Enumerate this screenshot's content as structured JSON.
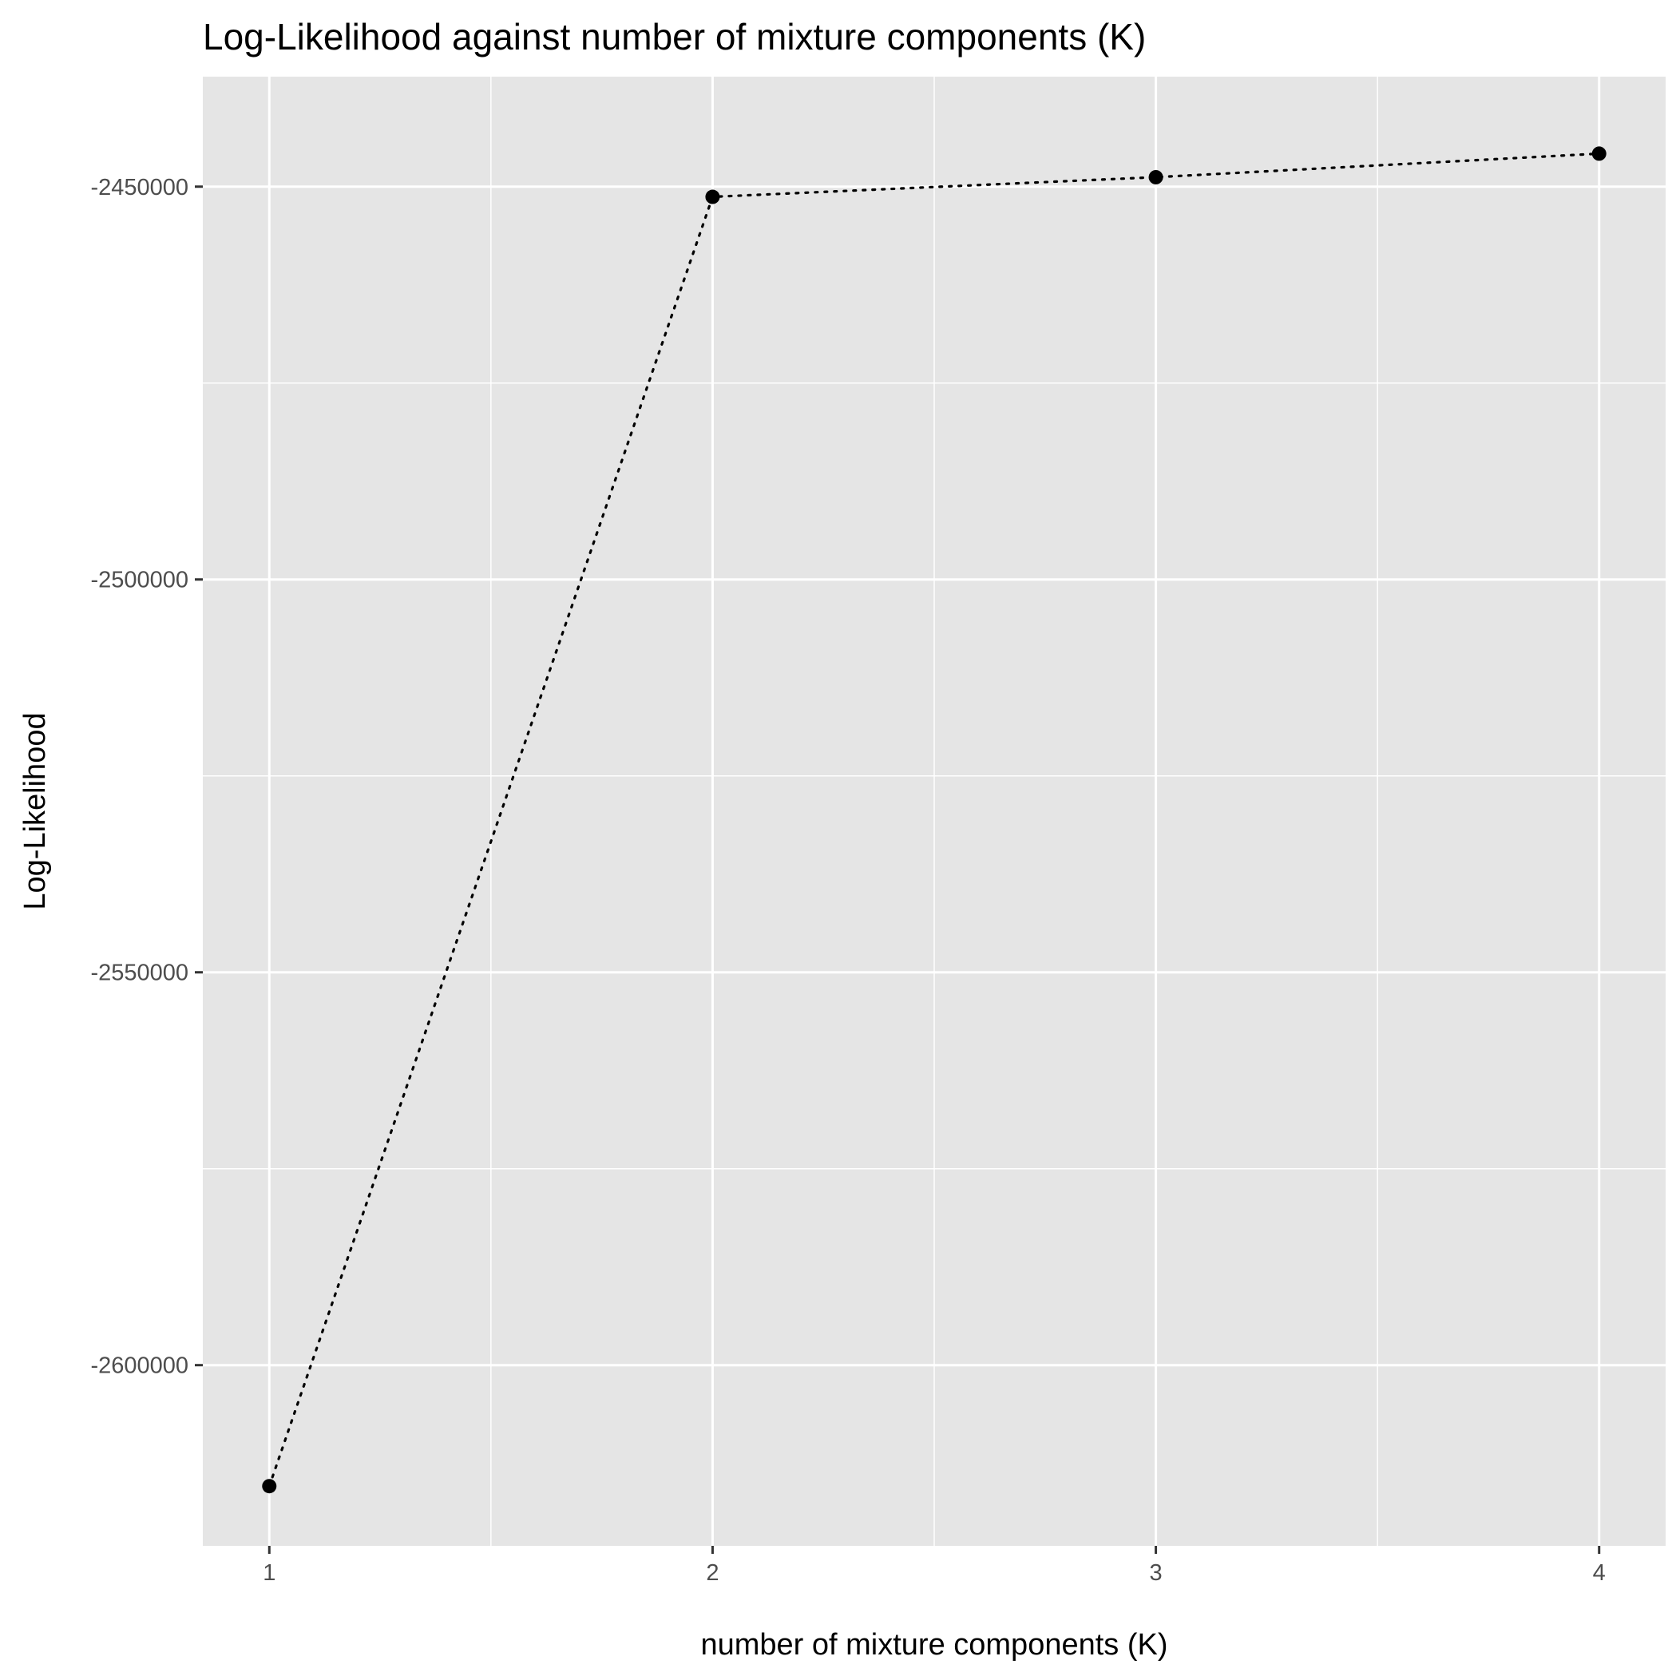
{
  "chart_data": {
    "type": "line",
    "title": "Log-Likelihood against number of mixture components (K)",
    "xlabel": "number of mixture components (K)",
    "ylabel": "Log-Likelihood",
    "x": [
      1,
      2,
      3,
      4
    ],
    "x_ticks": [
      "1",
      "2",
      "3",
      "4"
    ],
    "y_ticks": [
      {
        "value": -2450000,
        "label": "-2450000"
      },
      {
        "value": -2500000,
        "label": "-2500000"
      },
      {
        "value": -2550000,
        "label": "-2550000"
      },
      {
        "value": -2600000,
        "label": "-2600000"
      }
    ],
    "series": [
      {
        "values": [
          -2615400,
          -2451300,
          -2448800,
          -2445800
        ]
      }
    ],
    "xlim": [
      0.85,
      4.15
    ],
    "ylim": [
      -2623000,
      -2436000
    ],
    "line_style": "dotted",
    "line_color": "#000000",
    "panel_color": "#e5e5e5",
    "grid_color": "#ffffff",
    "grid": true,
    "legend": "none"
  }
}
